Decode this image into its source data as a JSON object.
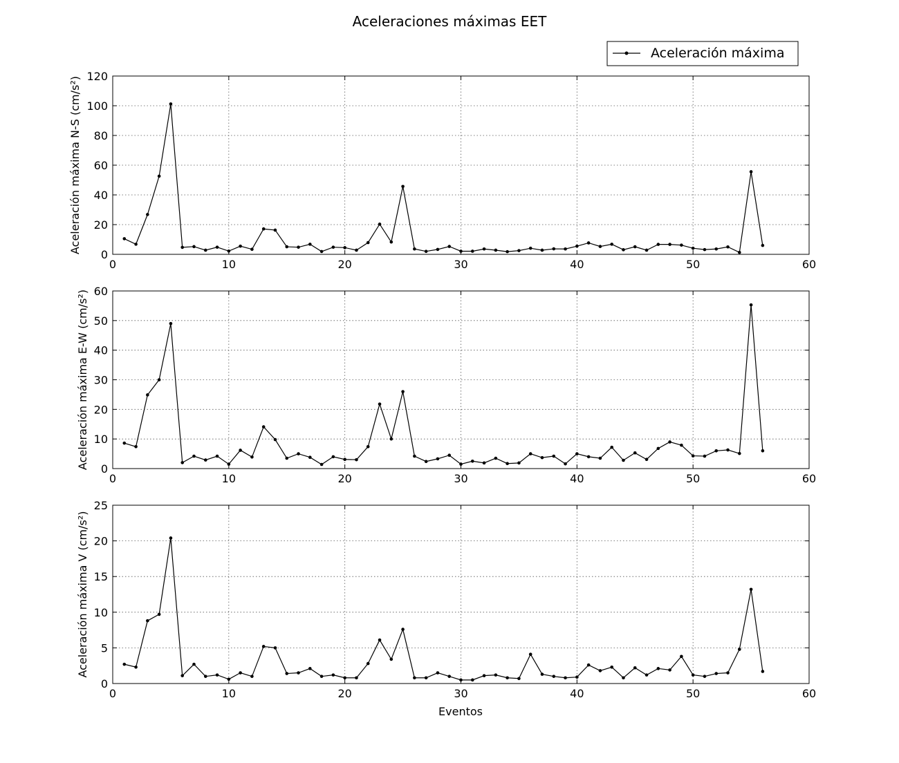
{
  "title": "Aceleraciones máximas EET",
  "legend": {
    "label": "Aceleración máxima",
    "placement": "top-right"
  },
  "xlabel": "Eventos",
  "chart_data": [
    {
      "type": "line",
      "ylabel": "Aceleración máxima N-S (cm/s²)",
      "xlim": [
        0,
        60
      ],
      "ylim": [
        0,
        120
      ],
      "xticks": [
        0,
        10,
        20,
        30,
        40,
        50,
        60
      ],
      "yticks": [
        0,
        20,
        40,
        60,
        80,
        100,
        120
      ],
      "grid": true,
      "series": [
        {
          "name": "Aceleración máxima",
          "color": "#000000",
          "x": [
            1,
            2,
            3,
            4,
            5,
            6,
            7,
            8,
            9,
            10,
            11,
            12,
            13,
            14,
            15,
            16,
            17,
            18,
            19,
            20,
            21,
            22,
            23,
            24,
            25,
            26,
            27,
            28,
            29,
            30,
            31,
            32,
            33,
            34,
            35,
            36,
            37,
            38,
            39,
            40,
            41,
            42,
            43,
            44,
            45,
            46,
            47,
            48,
            49,
            50,
            51,
            52,
            53,
            54,
            55,
            56
          ],
          "y": [
            10.5,
            6.8,
            26.8,
            52.6,
            101.2,
            4.7,
            5.2,
            2.8,
            4.8,
            2.2,
            5.5,
            3.4,
            17.1,
            16.3,
            5.1,
            4.8,
            6.8,
            1.9,
            4.8,
            4.5,
            2.8,
            7.9,
            20.3,
            8.3,
            45.7,
            3.6,
            2.0,
            3.3,
            5.3,
            2.1,
            2.1,
            3.6,
            2.8,
            1.8,
            2.5,
            4.1,
            2.8,
            3.7,
            3.6,
            5.5,
            7.7,
            5.3,
            6.8,
            3.1,
            5.1,
            2.8,
            6.7,
            6.7,
            6.2,
            4.1,
            3.2,
            3.6,
            5.0,
            1.3,
            55.6,
            6.0
          ]
        }
      ]
    },
    {
      "type": "line",
      "ylabel": "Aceleración máxima E-W (cm/s²)",
      "xlim": [
        0,
        60
      ],
      "ylim": [
        0,
        60
      ],
      "xticks": [
        0,
        10,
        20,
        30,
        40,
        50,
        60
      ],
      "yticks": [
        0,
        10,
        20,
        30,
        40,
        50,
        60
      ],
      "grid": true,
      "series": [
        {
          "name": "Aceleración máxima",
          "color": "#000000",
          "x": [
            1,
            2,
            3,
            4,
            5,
            6,
            7,
            8,
            9,
            10,
            11,
            12,
            13,
            14,
            15,
            16,
            17,
            18,
            19,
            20,
            21,
            22,
            23,
            24,
            25,
            26,
            27,
            28,
            29,
            30,
            31,
            32,
            33,
            34,
            35,
            36,
            37,
            38,
            39,
            40,
            41,
            42,
            43,
            44,
            45,
            46,
            47,
            48,
            49,
            50,
            51,
            52,
            53,
            54,
            55,
            56
          ],
          "y": [
            8.6,
            7.4,
            24.9,
            30.0,
            49.0,
            2.0,
            4.2,
            2.9,
            4.2,
            1.5,
            6.2,
            3.9,
            14.1,
            9.8,
            3.5,
            5.0,
            3.8,
            1.4,
            4.0,
            3.1,
            3.0,
            7.4,
            21.8,
            10.0,
            26.0,
            4.2,
            2.4,
            3.3,
            4.5,
            1.5,
            2.5,
            1.9,
            3.5,
            1.7,
            1.9,
            5.0,
            3.7,
            4.2,
            1.6,
            5.0,
            4.0,
            3.5,
            7.2,
            2.8,
            5.3,
            3.1,
            6.8,
            9.0,
            7.9,
            4.3,
            4.2,
            6.0,
            6.3,
            5.1,
            55.3,
            6.0
          ]
        }
      ]
    },
    {
      "type": "line",
      "ylabel": "Aceleración máxima V (cm/s²)",
      "xlim": [
        0,
        60
      ],
      "ylim": [
        0,
        25
      ],
      "xticks": [
        0,
        10,
        20,
        30,
        40,
        50,
        60
      ],
      "yticks": [
        0,
        5,
        10,
        15,
        20,
        25
      ],
      "grid": true,
      "series": [
        {
          "name": "Aceleración máxima",
          "color": "#000000",
          "x": [
            1,
            2,
            3,
            4,
            5,
            6,
            7,
            8,
            9,
            10,
            11,
            12,
            13,
            14,
            15,
            16,
            17,
            18,
            19,
            20,
            21,
            22,
            23,
            24,
            25,
            26,
            27,
            28,
            29,
            30,
            31,
            32,
            33,
            34,
            35,
            36,
            37,
            38,
            39,
            40,
            41,
            42,
            43,
            44,
            45,
            46,
            47,
            48,
            49,
            50,
            51,
            52,
            53,
            54,
            55,
            56
          ],
          "y": [
            2.7,
            2.3,
            8.8,
            9.7,
            20.4,
            1.1,
            2.7,
            1.0,
            1.2,
            0.6,
            1.5,
            1.0,
            5.2,
            5.0,
            1.4,
            1.5,
            2.1,
            1.0,
            1.2,
            0.8,
            0.8,
            2.8,
            6.1,
            3.4,
            7.6,
            0.8,
            0.8,
            1.5,
            1.0,
            0.5,
            0.5,
            1.1,
            1.2,
            0.8,
            0.7,
            4.1,
            1.3,
            1.0,
            0.8,
            0.9,
            2.6,
            1.8,
            2.3,
            0.8,
            2.2,
            1.2,
            2.1,
            1.9,
            3.8,
            1.2,
            1.0,
            1.4,
            1.5,
            4.8,
            13.2,
            1.7
          ]
        }
      ]
    }
  ]
}
